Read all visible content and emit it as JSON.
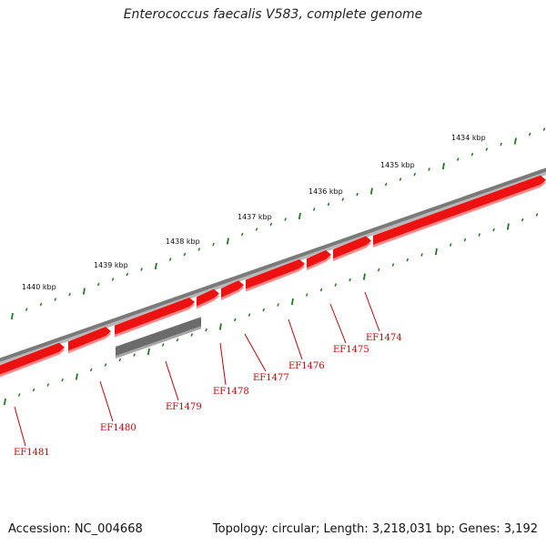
{
  "header": {
    "title": "Enterococcus faecalis V583, complete genome"
  },
  "footer": {
    "accession": "Accession: NC_004668",
    "summary": "Topology: circular; Length: 3,218,031 bp; Genes: 3,192"
  },
  "colors": {
    "backbone": "#7a7a7a",
    "gene_forward": "#ee1111",
    "gene_shadow": "#ff8888",
    "gene_other": "#6b6b6b",
    "ticks": "#1e7a1e",
    "label": "#cc0000"
  },
  "ruler": {
    "unit": "kbp",
    "labels": [
      "1434 kbp",
      "1435 kbp",
      "1436 kbp",
      "1437 kbp",
      "1438 kbp",
      "1439 kbp",
      "1440 kbp"
    ]
  },
  "genes": [
    {
      "name": "EF1474",
      "kind": "forward"
    },
    {
      "name": "EF1475",
      "kind": "forward"
    },
    {
      "name": "EF1476",
      "kind": "forward"
    },
    {
      "name": "EF1477",
      "kind": "forward"
    },
    {
      "name": "EF1478",
      "kind": "forward"
    },
    {
      "name": "EF1479",
      "kind": "other"
    },
    {
      "name": "EF1480",
      "kind": "forward"
    },
    {
      "name": "EF1481",
      "kind": "forward"
    }
  ]
}
